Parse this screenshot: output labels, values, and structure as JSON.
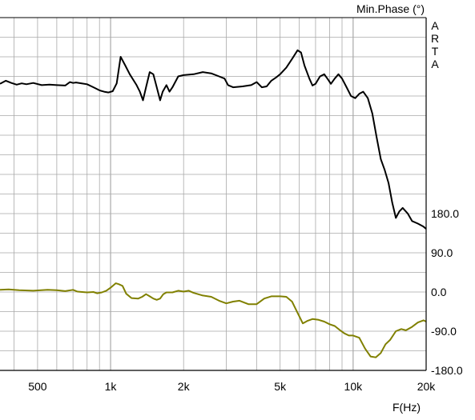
{
  "chart_data": {
    "type": "line",
    "title": "Min.Phase (°)",
    "xlabel": "F(Hz)",
    "watermark": [
      "A",
      "R",
      "T",
      "A"
    ],
    "x_scale": "log",
    "xlim": [
      350,
      20000
    ],
    "ylim": [
      -180,
      630
    ],
    "x_ticks": [
      {
        "value": 500,
        "label": "500"
      },
      {
        "value": 1000,
        "label": "1k"
      },
      {
        "value": 2000,
        "label": "2k"
      },
      {
        "value": 5000,
        "label": "5k"
      },
      {
        "value": 10000,
        "label": "10k"
      },
      {
        "value": 20000,
        "label": "20k"
      }
    ],
    "y_ticks": [
      {
        "value": 180,
        "label": "180.0"
      },
      {
        "value": 90,
        "label": "90.0"
      },
      {
        "value": 0,
        "label": "0.0"
      },
      {
        "value": -90,
        "label": "-90.0"
      },
      {
        "value": -180,
        "label": "-180.0"
      }
    ],
    "grid": true,
    "colors": {
      "grid": "#a9a9a9",
      "series_1": "#000000",
      "series_2": "#808000",
      "frame": "#000000"
    },
    "series": [
      {
        "color": "#000000",
        "points": [
          [
            350,
            478
          ],
          [
            370,
            485
          ],
          [
            390,
            480
          ],
          [
            410,
            476
          ],
          [
            430,
            479
          ],
          [
            450,
            477
          ],
          [
            480,
            480
          ],
          [
            520,
            475
          ],
          [
            560,
            476
          ],
          [
            600,
            475
          ],
          [
            650,
            474
          ],
          [
            680,
            482
          ],
          [
            700,
            480
          ],
          [
            720,
            481
          ],
          [
            760,
            479
          ],
          [
            800,
            477
          ],
          [
            850,
            470
          ],
          [
            900,
            463
          ],
          [
            940,
            460
          ],
          [
            980,
            458
          ],
          [
            1020,
            461
          ],
          [
            1060,
            479
          ],
          [
            1100,
            540
          ],
          [
            1150,
            520
          ],
          [
            1200,
            500
          ],
          [
            1280,
            475
          ],
          [
            1320,
            460
          ],
          [
            1360,
            440
          ],
          [
            1400,
            470
          ],
          [
            1450,
            505
          ],
          [
            1500,
            500
          ],
          [
            1550,
            470
          ],
          [
            1600,
            440
          ],
          [
            1640,
            460
          ],
          [
            1700,
            475
          ],
          [
            1750,
            460
          ],
          [
            1800,
            470
          ],
          [
            1900,
            495
          ],
          [
            2000,
            498
          ],
          [
            2200,
            500
          ],
          [
            2400,
            505
          ],
          [
            2600,
            502
          ],
          [
            2800,
            495
          ],
          [
            2950,
            490
          ],
          [
            3050,
            475
          ],
          [
            3200,
            470
          ],
          [
            3500,
            472
          ],
          [
            3800,
            475
          ],
          [
            4000,
            482
          ],
          [
            4200,
            470
          ],
          [
            4400,
            472
          ],
          [
            4600,
            485
          ],
          [
            4800,
            492
          ],
          [
            5000,
            500
          ],
          [
            5300,
            515
          ],
          [
            5600,
            535
          ],
          [
            5900,
            555
          ],
          [
            6100,
            550
          ],
          [
            6300,
            520
          ],
          [
            6600,
            490
          ],
          [
            6800,
            474
          ],
          [
            7000,
            478
          ],
          [
            7300,
            495
          ],
          [
            7600,
            500
          ],
          [
            7900,
            487
          ],
          [
            8100,
            478
          ],
          [
            8400,
            490
          ],
          [
            8700,
            500
          ],
          [
            9000,
            490
          ],
          [
            9400,
            470
          ],
          [
            9800,
            450
          ],
          [
            10200,
            445
          ],
          [
            10600,
            455
          ],
          [
            11000,
            460
          ],
          [
            11500,
            445
          ],
          [
            12000,
            410
          ],
          [
            12500,
            355
          ],
          [
            13000,
            305
          ],
          [
            13500,
            280
          ],
          [
            14000,
            250
          ],
          [
            14500,
            205
          ],
          [
            15000,
            170
          ],
          [
            15500,
            185
          ],
          [
            16000,
            193
          ],
          [
            16800,
            180
          ],
          [
            17500,
            163
          ],
          [
            18500,
            157
          ],
          [
            19500,
            150
          ],
          [
            20000,
            145
          ]
        ]
      },
      {
        "color": "#808000",
        "points": [
          [
            350,
            5
          ],
          [
            380,
            6
          ],
          [
            420,
            4
          ],
          [
            480,
            3
          ],
          [
            550,
            5
          ],
          [
            600,
            4
          ],
          [
            650,
            2
          ],
          [
            700,
            5
          ],
          [
            730,
            1
          ],
          [
            800,
            -1
          ],
          [
            850,
            0
          ],
          [
            880,
            -3
          ],
          [
            920,
            -1
          ],
          [
            960,
            3
          ],
          [
            1000,
            10
          ],
          [
            1050,
            20
          ],
          [
            1080,
            18
          ],
          [
            1120,
            14
          ],
          [
            1160,
            -4
          ],
          [
            1220,
            -14
          ],
          [
            1300,
            -15
          ],
          [
            1350,
            -11
          ],
          [
            1400,
            -5
          ],
          [
            1450,
            -10
          ],
          [
            1500,
            -15
          ],
          [
            1550,
            -18
          ],
          [
            1600,
            -15
          ],
          [
            1650,
            -5
          ],
          [
            1700,
            -1
          ],
          [
            1800,
            -1
          ],
          [
            1900,
            3
          ],
          [
            2000,
            1
          ],
          [
            2100,
            3
          ],
          [
            2200,
            -2
          ],
          [
            2400,
            -8
          ],
          [
            2600,
            -11
          ],
          [
            2800,
            -20
          ],
          [
            3000,
            -26
          ],
          [
            3200,
            -22
          ],
          [
            3400,
            -20
          ],
          [
            3700,
            -28
          ],
          [
            4000,
            -28
          ],
          [
            4300,
            -15
          ],
          [
            4600,
            -10
          ],
          [
            5000,
            -10
          ],
          [
            5300,
            -11
          ],
          [
            5600,
            -22
          ],
          [
            5900,
            -48
          ],
          [
            6200,
            -72
          ],
          [
            6500,
            -66
          ],
          [
            6800,
            -62
          ],
          [
            7200,
            -64
          ],
          [
            7600,
            -68
          ],
          [
            8000,
            -74
          ],
          [
            8400,
            -78
          ],
          [
            8800,
            -87
          ],
          [
            9200,
            -95
          ],
          [
            9600,
            -100
          ],
          [
            10000,
            -100
          ],
          [
            10600,
            -105
          ],
          [
            11200,
            -130
          ],
          [
            11800,
            -148
          ],
          [
            12400,
            -150
          ],
          [
            13000,
            -140
          ],
          [
            13600,
            -120
          ],
          [
            14200,
            -110
          ],
          [
            15000,
            -90
          ],
          [
            15800,
            -85
          ],
          [
            16500,
            -88
          ],
          [
            17500,
            -80
          ],
          [
            18500,
            -70
          ],
          [
            19500,
            -65
          ],
          [
            20000,
            -68
          ]
        ]
      }
    ]
  }
}
